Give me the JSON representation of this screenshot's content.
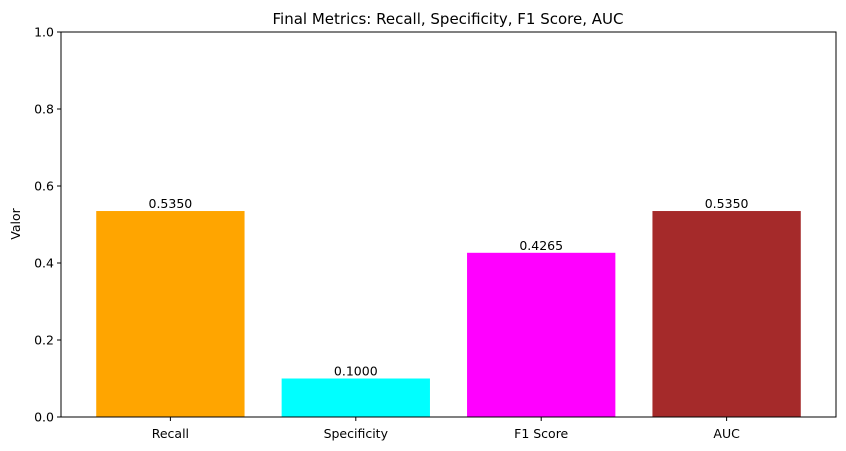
{
  "chart_data": {
    "type": "bar",
    "title": "Final Metrics: Recall, Specificity, F1 Score, AUC",
    "xlabel": "",
    "ylabel": "Valor",
    "ylim": [
      0,
      1
    ],
    "yticks": [
      0,
      0.2,
      0.4,
      0.6,
      0.8,
      1.0
    ],
    "ytick_labels": [
      "0.0",
      "0.2",
      "0.4",
      "0.6",
      "0.8",
      "1.0"
    ],
    "categories": [
      "Recall",
      "Specificity",
      "F1 Score",
      "AUC"
    ],
    "values": [
      0.535,
      0.1,
      0.4265,
      0.535
    ],
    "value_labels": [
      "0.5350",
      "0.1000",
      "0.4265",
      "0.5350"
    ],
    "colors": [
      "#ffa500",
      "#00ffff",
      "#ff00ff",
      "#a52a2a"
    ],
    "grid": false,
    "legend": "none"
  }
}
